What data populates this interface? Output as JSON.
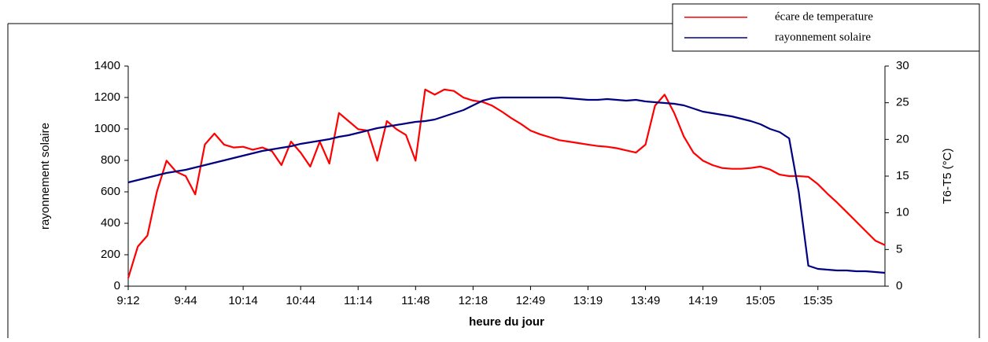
{
  "chart_data": {
    "type": "line",
    "xlabel": "heure du jour",
    "ylabel": "rayonnement solaire",
    "y2label": "T6-T5 (°C)",
    "categories": [
      "9:12",
      null,
      null,
      null,
      null,
      null,
      "9:44",
      null,
      null,
      null,
      null,
      null,
      "10:14",
      null,
      null,
      null,
      null,
      null,
      "10:44",
      null,
      null,
      null,
      null,
      null,
      "11:14",
      null,
      null,
      null,
      null,
      null,
      "11:48",
      null,
      null,
      null,
      null,
      null,
      "12:18",
      null,
      null,
      null,
      null,
      null,
      "12:49",
      null,
      null,
      null,
      null,
      null,
      "13:19",
      null,
      null,
      null,
      null,
      null,
      "13:49",
      null,
      null,
      null,
      null,
      null,
      "14:19",
      null,
      null,
      null,
      null,
      null,
      "15:05",
      null,
      null,
      null,
      null,
      null,
      "15:35",
      null,
      null,
      null,
      null,
      null,
      null,
      null
    ],
    "series": [
      {
        "name": "écare de temperature",
        "color": "#ff0000",
        "axis": "y2",
        "values": [
          1.1,
          5.4,
          6.9,
          12.9,
          17.1,
          15.6,
          15,
          12.5,
          19.3,
          20.8,
          19.3,
          18.9,
          19,
          18.6,
          18.9,
          18.4,
          16.5,
          19.7,
          18.2,
          16.3,
          19.7,
          16.7,
          23.6,
          22.5,
          21.4,
          21.2,
          17.1,
          22.5,
          21.4,
          20.6,
          17.1,
          26.8,
          26.1,
          26.8,
          26.6,
          25.7,
          25.3,
          25.1,
          24.6,
          23.8,
          22.9,
          22.1,
          21.2,
          20.7,
          20.3,
          19.9,
          19.7,
          19.5,
          19.3,
          19.1,
          19,
          18.8,
          18.5,
          18.2,
          19.3,
          24.6,
          26.1,
          23.6,
          20.4,
          18.2,
          17.1,
          16.5,
          16.1,
          16,
          16,
          16.1,
          16.3,
          15.9,
          15.2,
          15,
          15,
          14.9,
          13.9,
          12.6,
          11.4,
          10.1,
          8.8,
          7.5,
          6.2,
          5.6
        ]
      },
      {
        "name": "rayonnement solaire",
        "color": "#000080",
        "values": [
          660,
          675,
          690,
          705,
          720,
          730,
          740,
          755,
          770,
          785,
          800,
          815,
          830,
          845,
          860,
          870,
          880,
          890,
          905,
          915,
          925,
          935,
          950,
          960,
          975,
          990,
          1005,
          1015,
          1025,
          1035,
          1045,
          1050,
          1060,
          1080,
          1100,
          1120,
          1150,
          1180,
          1195,
          1200,
          1200,
          1200,
          1200,
          1200,
          1200,
          1200,
          1195,
          1190,
          1185,
          1185,
          1190,
          1185,
          1180,
          1185,
          1175,
          1170,
          1165,
          1160,
          1150,
          1130,
          1110,
          1100,
          1090,
          1080,
          1065,
          1050,
          1030,
          1000,
          980,
          940,
          600,
          130,
          110,
          105,
          100,
          100,
          95,
          95,
          90,
          85
        ]
      }
    ],
    "ylim": [
      0,
      1400
    ],
    "yticks": [
      0,
      200,
      400,
      600,
      800,
      1000,
      1200,
      1400
    ],
    "y2lim": [
      0,
      30
    ],
    "y2ticks": [
      0,
      5,
      10,
      15,
      20,
      25,
      30
    ],
    "legend": "top-right"
  }
}
